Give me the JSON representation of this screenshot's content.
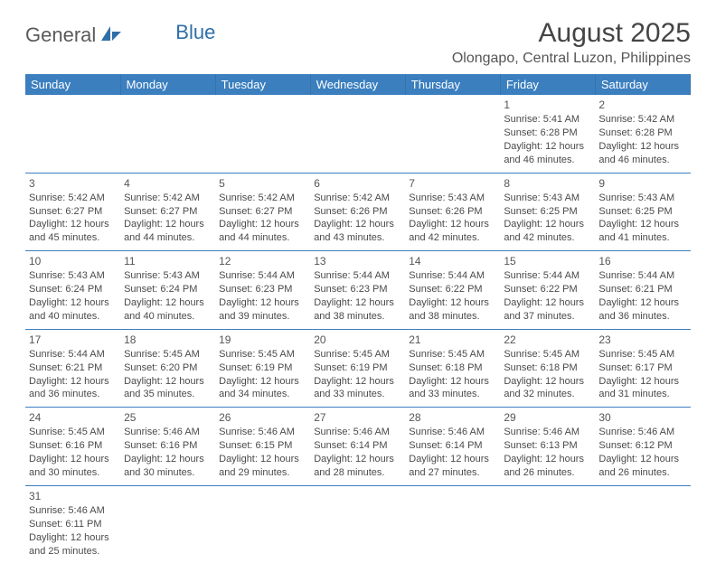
{
  "brand": {
    "part1": "General",
    "part2": "Blue"
  },
  "title": "August 2025",
  "location": "Olongapo, Central Luzon, Philippines",
  "colors": {
    "header_bg": "#3b7fbf",
    "header_text": "#ffffff",
    "border": "#3b7fbf",
    "text": "#4a4a4a",
    "brand_gray": "#5a5a5a",
    "brand_blue": "#2f6fa8"
  },
  "weekdays": [
    "Sunday",
    "Monday",
    "Tuesday",
    "Wednesday",
    "Thursday",
    "Friday",
    "Saturday"
  ],
  "weeks": [
    [
      null,
      null,
      null,
      null,
      null,
      {
        "d": "1",
        "sr": "5:41 AM",
        "ss": "6:28 PM",
        "dl": "12 hours and 46 minutes."
      },
      {
        "d": "2",
        "sr": "5:42 AM",
        "ss": "6:28 PM",
        "dl": "12 hours and 46 minutes."
      }
    ],
    [
      {
        "d": "3",
        "sr": "5:42 AM",
        "ss": "6:27 PM",
        "dl": "12 hours and 45 minutes."
      },
      {
        "d": "4",
        "sr": "5:42 AM",
        "ss": "6:27 PM",
        "dl": "12 hours and 44 minutes."
      },
      {
        "d": "5",
        "sr": "5:42 AM",
        "ss": "6:27 PM",
        "dl": "12 hours and 44 minutes."
      },
      {
        "d": "6",
        "sr": "5:42 AM",
        "ss": "6:26 PM",
        "dl": "12 hours and 43 minutes."
      },
      {
        "d": "7",
        "sr": "5:43 AM",
        "ss": "6:26 PM",
        "dl": "12 hours and 42 minutes."
      },
      {
        "d": "8",
        "sr": "5:43 AM",
        "ss": "6:25 PM",
        "dl": "12 hours and 42 minutes."
      },
      {
        "d": "9",
        "sr": "5:43 AM",
        "ss": "6:25 PM",
        "dl": "12 hours and 41 minutes."
      }
    ],
    [
      {
        "d": "10",
        "sr": "5:43 AM",
        "ss": "6:24 PM",
        "dl": "12 hours and 40 minutes."
      },
      {
        "d": "11",
        "sr": "5:43 AM",
        "ss": "6:24 PM",
        "dl": "12 hours and 40 minutes."
      },
      {
        "d": "12",
        "sr": "5:44 AM",
        "ss": "6:23 PM",
        "dl": "12 hours and 39 minutes."
      },
      {
        "d": "13",
        "sr": "5:44 AM",
        "ss": "6:23 PM",
        "dl": "12 hours and 38 minutes."
      },
      {
        "d": "14",
        "sr": "5:44 AM",
        "ss": "6:22 PM",
        "dl": "12 hours and 38 minutes."
      },
      {
        "d": "15",
        "sr": "5:44 AM",
        "ss": "6:22 PM",
        "dl": "12 hours and 37 minutes."
      },
      {
        "d": "16",
        "sr": "5:44 AM",
        "ss": "6:21 PM",
        "dl": "12 hours and 36 minutes."
      }
    ],
    [
      {
        "d": "17",
        "sr": "5:44 AM",
        "ss": "6:21 PM",
        "dl": "12 hours and 36 minutes."
      },
      {
        "d": "18",
        "sr": "5:45 AM",
        "ss": "6:20 PM",
        "dl": "12 hours and 35 minutes."
      },
      {
        "d": "19",
        "sr": "5:45 AM",
        "ss": "6:19 PM",
        "dl": "12 hours and 34 minutes."
      },
      {
        "d": "20",
        "sr": "5:45 AM",
        "ss": "6:19 PM",
        "dl": "12 hours and 33 minutes."
      },
      {
        "d": "21",
        "sr": "5:45 AM",
        "ss": "6:18 PM",
        "dl": "12 hours and 33 minutes."
      },
      {
        "d": "22",
        "sr": "5:45 AM",
        "ss": "6:18 PM",
        "dl": "12 hours and 32 minutes."
      },
      {
        "d": "23",
        "sr": "5:45 AM",
        "ss": "6:17 PM",
        "dl": "12 hours and 31 minutes."
      }
    ],
    [
      {
        "d": "24",
        "sr": "5:45 AM",
        "ss": "6:16 PM",
        "dl": "12 hours and 30 minutes."
      },
      {
        "d": "25",
        "sr": "5:46 AM",
        "ss": "6:16 PM",
        "dl": "12 hours and 30 minutes."
      },
      {
        "d": "26",
        "sr": "5:46 AM",
        "ss": "6:15 PM",
        "dl": "12 hours and 29 minutes."
      },
      {
        "d": "27",
        "sr": "5:46 AM",
        "ss": "6:14 PM",
        "dl": "12 hours and 28 minutes."
      },
      {
        "d": "28",
        "sr": "5:46 AM",
        "ss": "6:14 PM",
        "dl": "12 hours and 27 minutes."
      },
      {
        "d": "29",
        "sr": "5:46 AM",
        "ss": "6:13 PM",
        "dl": "12 hours and 26 minutes."
      },
      {
        "d": "30",
        "sr": "5:46 AM",
        "ss": "6:12 PM",
        "dl": "12 hours and 26 minutes."
      }
    ],
    [
      {
        "d": "31",
        "sr": "5:46 AM",
        "ss": "6:11 PM",
        "dl": "12 hours and 25 minutes."
      },
      null,
      null,
      null,
      null,
      null,
      null
    ]
  ],
  "labels": {
    "sunrise": "Sunrise:",
    "sunset": "Sunset:",
    "daylight": "Daylight:"
  }
}
